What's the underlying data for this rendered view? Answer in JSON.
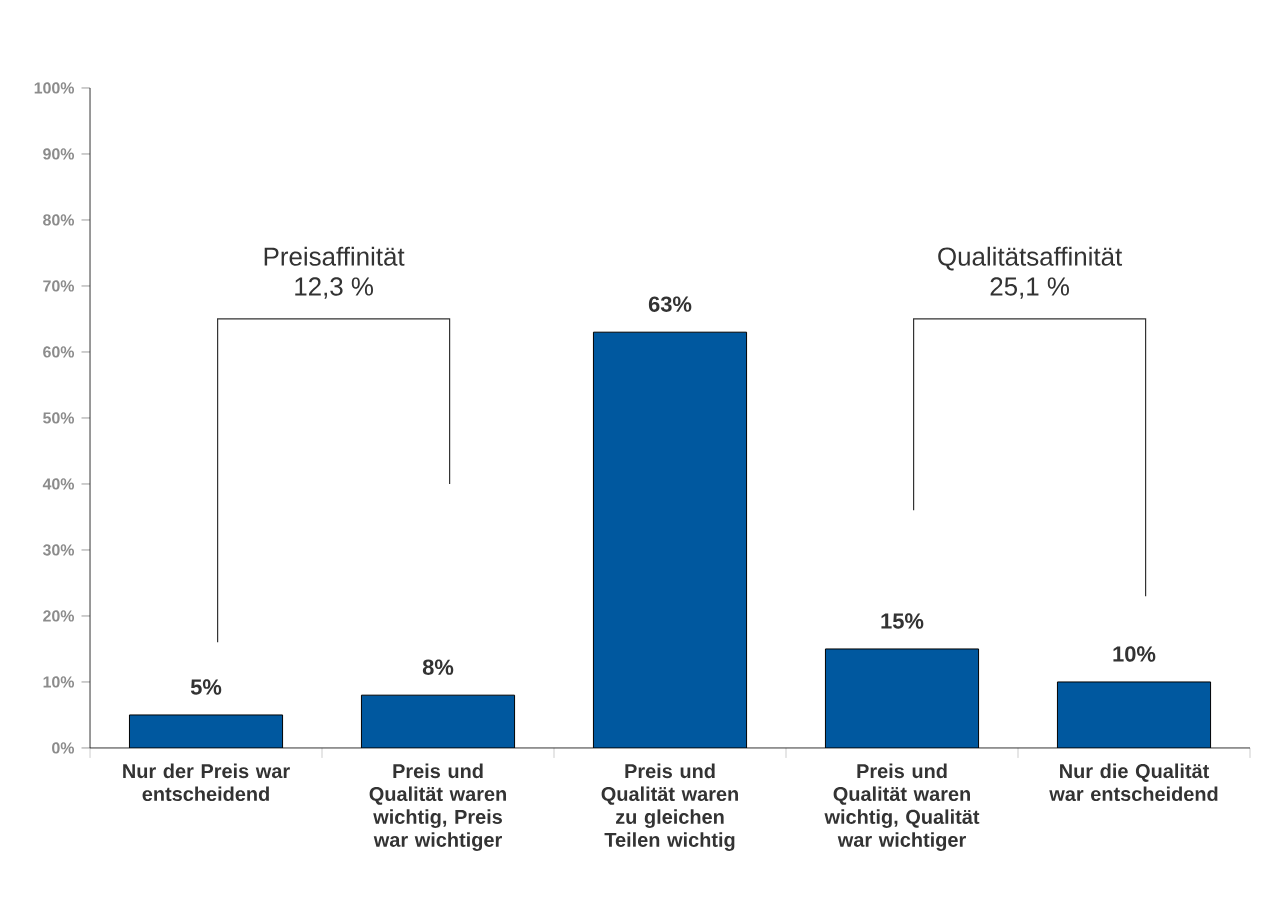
{
  "chart_data": {
    "type": "bar",
    "categories": [
      "Nur der Preis war entscheidend",
      "Preis und Qualität waren wichtig, Preis war wichtiger",
      "Preis und Qualität waren zu gleichen Teilen wichtig",
      "Preis und Qualität waren wichtig, Qualität war wichtiger",
      "Nur die Qualität war entscheidend"
    ],
    "values": [
      5,
      8,
      63,
      15,
      10
    ],
    "value_labels": [
      "5%",
      "8%",
      "63%",
      "15%",
      "10%"
    ],
    "color": "#00589f",
    "ylim": [
      0,
      100
    ],
    "yticks": [
      {
        "value": 0,
        "label": "0%"
      },
      {
        "value": 10,
        "label": "10%"
      },
      {
        "value": 20,
        "label": "20%"
      },
      {
        "value": 30,
        "label": "30%"
      },
      {
        "value": 40,
        "label": "40%"
      },
      {
        "value": 50,
        "label": "50%"
      },
      {
        "value": 60,
        "label": "60%"
      },
      {
        "value": 70,
        "label": "70%"
      },
      {
        "value": 80,
        "label": "80%"
      },
      {
        "value": 90,
        "label": "90%"
      },
      {
        "value": 100,
        "label": "100%"
      }
    ],
    "annotations": [
      "Preisaffinität",
      "12,3 %",
      "Qualitätsaffinität",
      "25,1 %"
    ]
  }
}
